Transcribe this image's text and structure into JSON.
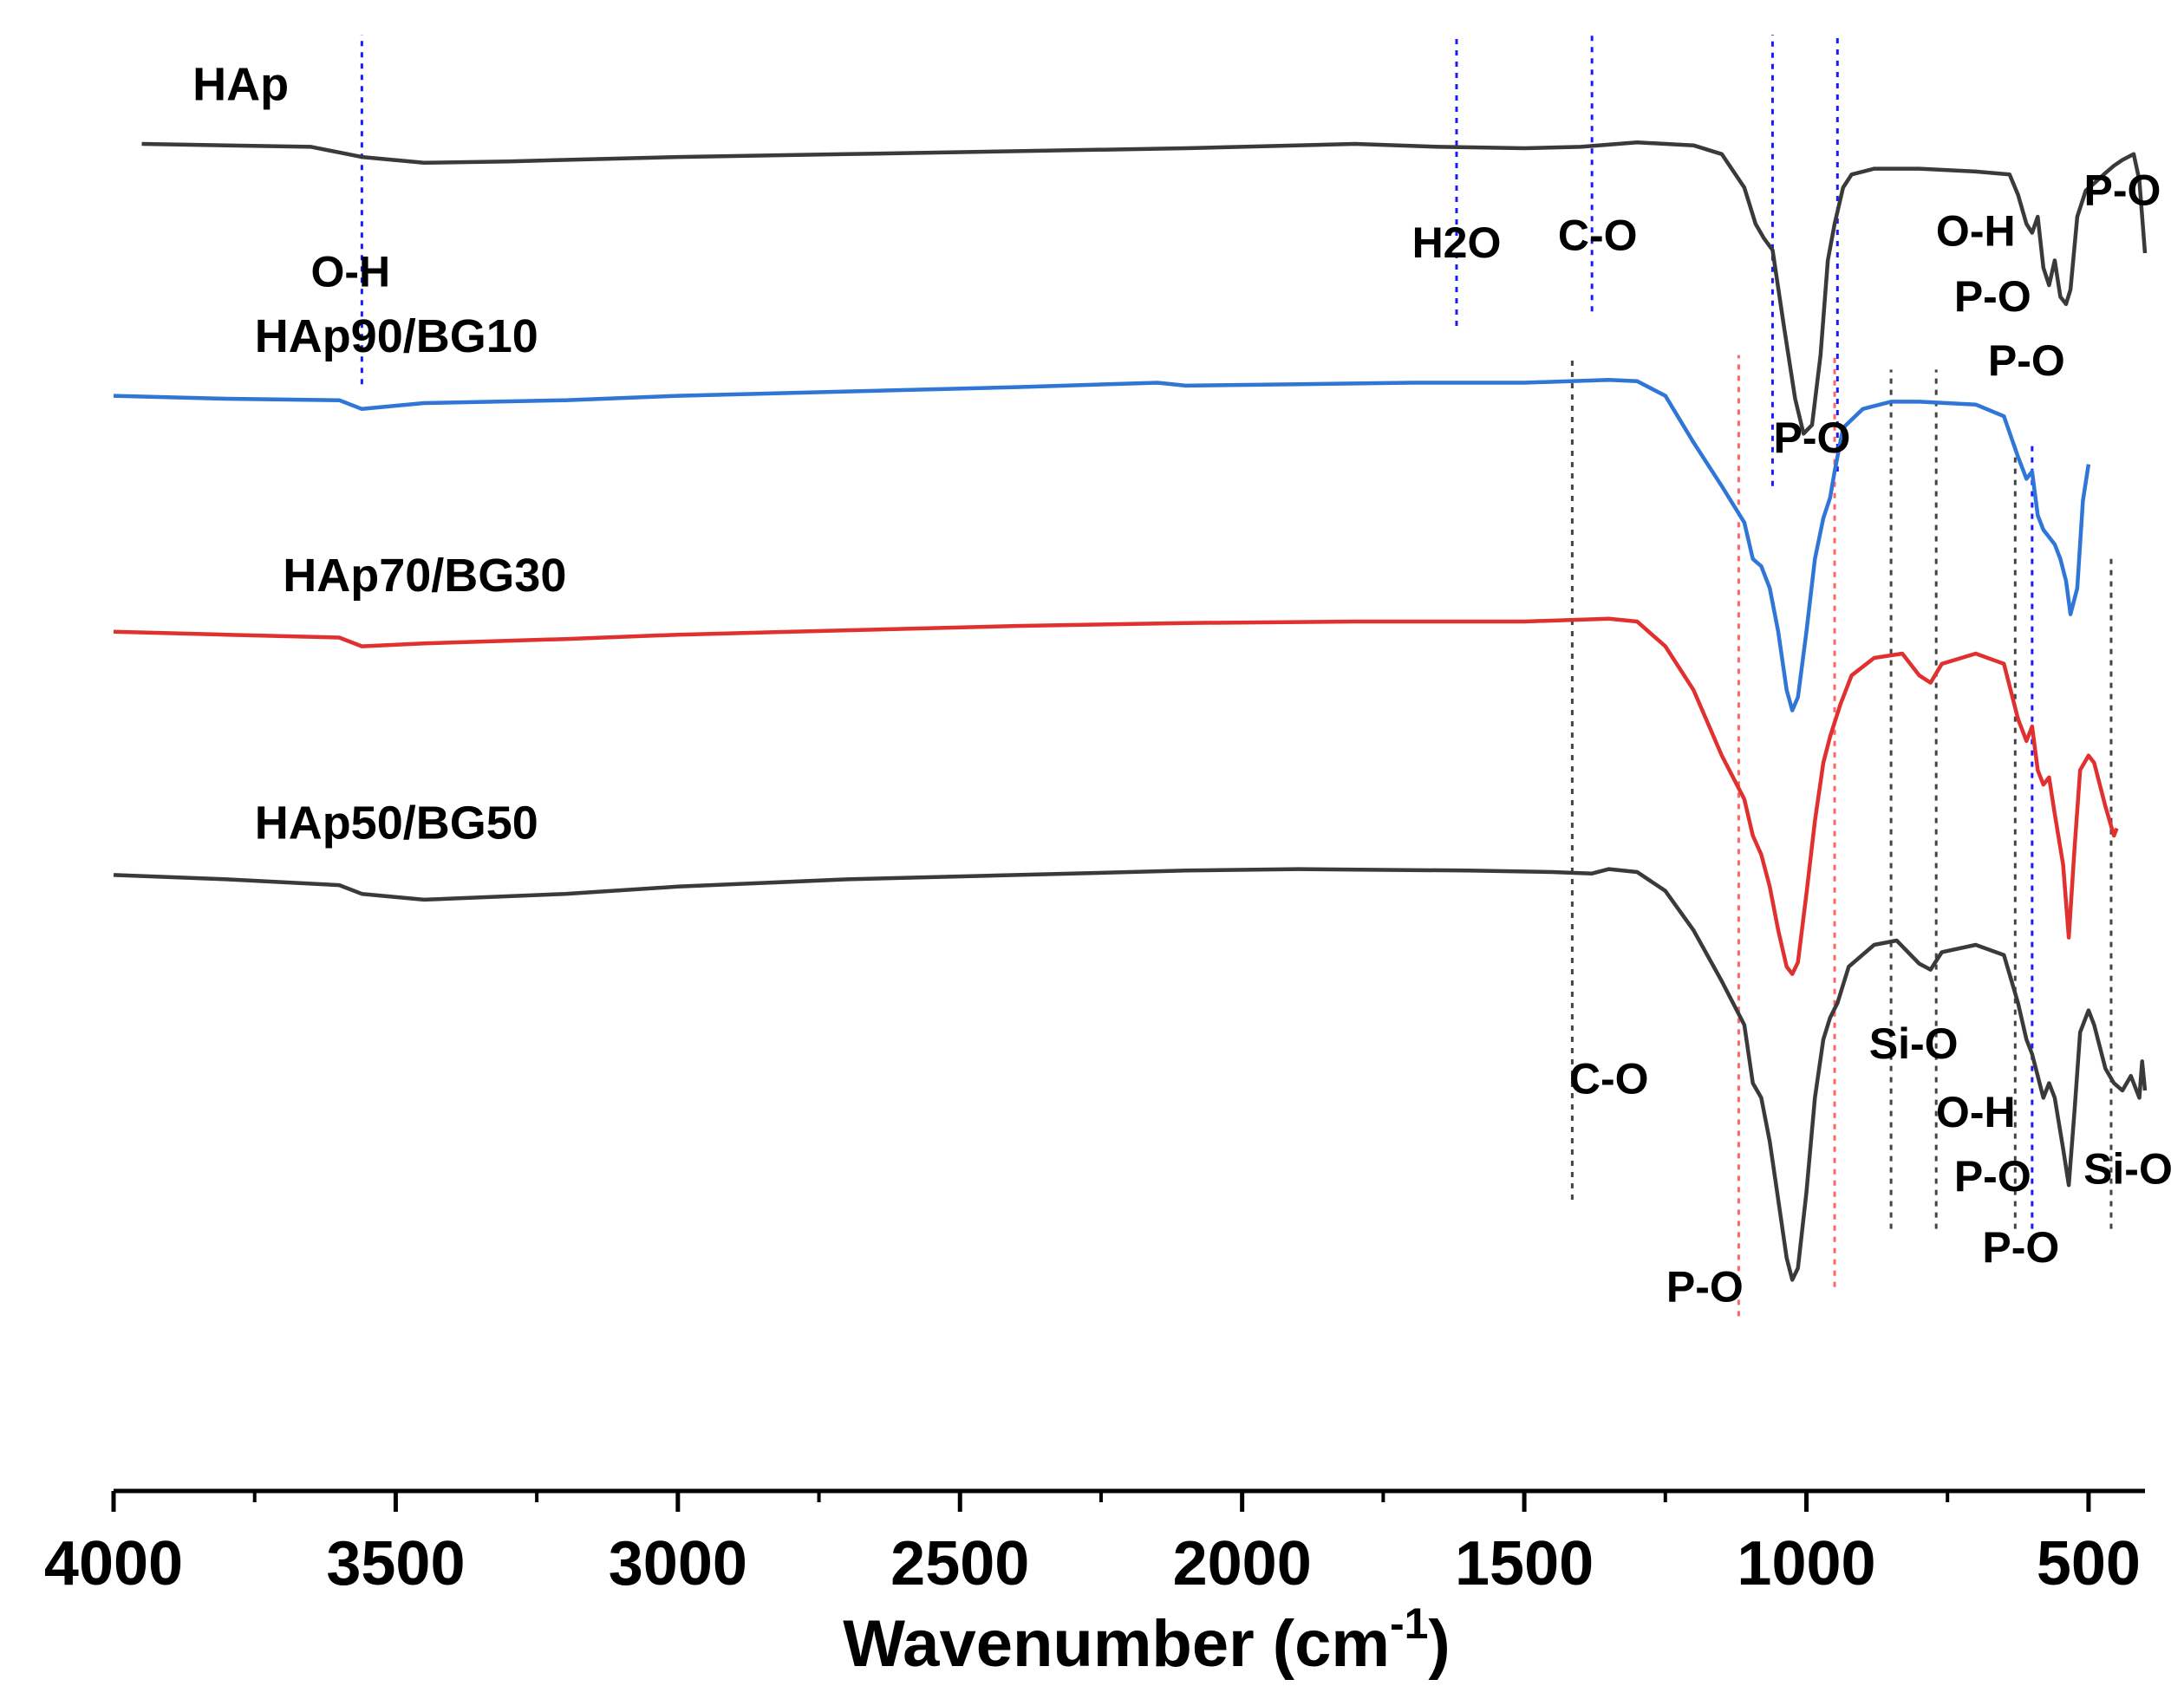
{
  "chart_data": {
    "type": "line",
    "title": "",
    "xlabel": "Wavenumber (cm",
    "xlabel_superscript": "-1",
    "xlabel_close": ")",
    "ylabel": "",
    "xlim": [
      4000,
      400
    ],
    "xticks": [
      "4000",
      "3500",
      "3000",
      "2500",
      "2000",
      "1500",
      "1000",
      "500"
    ],
    "xtick_values": [
      4000,
      3500,
      3000,
      2500,
      2000,
      1500,
      1000,
      500
    ],
    "yunits": "arbitrary transmittance (offset)",
    "ylim": [
      0,
      100
    ],
    "series": [
      {
        "name": "HAp",
        "color": "#3a3a3a",
        "points": [
          [
            3950,
            92.5
          ],
          [
            3800,
            92.4
          ],
          [
            3650,
            92.3
          ],
          [
            3560,
            91.6
          ],
          [
            3450,
            91.2
          ],
          [
            3300,
            91.3
          ],
          [
            3000,
            91.6
          ],
          [
            2700,
            91.8
          ],
          [
            2400,
            92.0
          ],
          [
            2100,
            92.2
          ],
          [
            1800,
            92.5
          ],
          [
            1650,
            92.3
          ],
          [
            1500,
            92.2
          ],
          [
            1400,
            92.3
          ],
          [
            1300,
            92.6
          ],
          [
            1200,
            92.4
          ],
          [
            1150,
            91.8
          ],
          [
            1110,
            89.5
          ],
          [
            1090,
            87.0
          ],
          [
            1075,
            86.0
          ],
          [
            1060,
            85.2
          ],
          [
            1040,
            80.0
          ],
          [
            1020,
            75.0
          ],
          [
            1005,
            72.6
          ],
          [
            990,
            73.2
          ],
          [
            975,
            78.0
          ],
          [
            962,
            84.5
          ],
          [
            950,
            87.0
          ],
          [
            935,
            89.5
          ],
          [
            920,
            90.4
          ],
          [
            880,
            90.8
          ],
          [
            800,
            90.8
          ],
          [
            700,
            90.6
          ],
          [
            640,
            90.4
          ],
          [
            625,
            89.0
          ],
          [
            610,
            87.0
          ],
          [
            600,
            86.4
          ],
          [
            590,
            87.5
          ],
          [
            580,
            84.0
          ],
          [
            570,
            82.8
          ],
          [
            560,
            84.5
          ],
          [
            550,
            82.0
          ],
          [
            540,
            81.5
          ],
          [
            532,
            82.5
          ],
          [
            520,
            87.5
          ],
          [
            505,
            89.3
          ],
          [
            490,
            89.8
          ],
          [
            470,
            90.5
          ],
          [
            455,
            91.0
          ],
          [
            440,
            91.4
          ],
          [
            420,
            91.8
          ],
          [
            410,
            90.0
          ],
          [
            400,
            85.0
          ]
        ]
      },
      {
        "name": "HAp90/BG10",
        "color": "#2f76d6",
        "points": [
          [
            4000,
            75.2
          ],
          [
            3800,
            75.0
          ],
          [
            3600,
            74.9
          ],
          [
            3560,
            74.3
          ],
          [
            3450,
            74.7
          ],
          [
            3200,
            74.9
          ],
          [
            3000,
            75.2
          ],
          [
            2700,
            75.5
          ],
          [
            2400,
            75.8
          ],
          [
            2150,
            76.1
          ],
          [
            2100,
            75.9
          ],
          [
            1900,
            76.0
          ],
          [
            1700,
            76.1
          ],
          [
            1500,
            76.1
          ],
          [
            1350,
            76.3
          ],
          [
            1300,
            76.2
          ],
          [
            1250,
            75.2
          ],
          [
            1200,
            72.0
          ],
          [
            1150,
            69.0
          ],
          [
            1110,
            66.5
          ],
          [
            1095,
            64.0
          ],
          [
            1080,
            63.5
          ],
          [
            1065,
            62.0
          ],
          [
            1050,
            59.0
          ],
          [
            1035,
            55.0
          ],
          [
            1025,
            53.6
          ],
          [
            1015,
            54.5
          ],
          [
            1000,
            59.0
          ],
          [
            985,
            64.0
          ],
          [
            970,
            66.8
          ],
          [
            958,
            68.2
          ],
          [
            950,
            70.0
          ],
          [
            935,
            73.0
          ],
          [
            900,
            74.3
          ],
          [
            850,
            74.8
          ],
          [
            800,
            74.8
          ],
          [
            700,
            74.6
          ],
          [
            650,
            73.8
          ],
          [
            625,
            71.0
          ],
          [
            610,
            69.5
          ],
          [
            600,
            70.0
          ],
          [
            590,
            67.0
          ],
          [
            580,
            66.0
          ],
          [
            570,
            65.5
          ],
          [
            560,
            65.0
          ],
          [
            550,
            64.0
          ],
          [
            540,
            62.5
          ],
          [
            532,
            60.2
          ],
          [
            520,
            62.0
          ],
          [
            510,
            68.0
          ],
          [
            500,
            70.5
          ]
        ]
      },
      {
        "name": "HAp70/BG30",
        "color": "#e03030",
        "points": [
          [
            4000,
            59.0
          ],
          [
            3800,
            58.8
          ],
          [
            3600,
            58.6
          ],
          [
            3560,
            58.0
          ],
          [
            3450,
            58.2
          ],
          [
            3200,
            58.5
          ],
          [
            3000,
            58.8
          ],
          [
            2700,
            59.1
          ],
          [
            2400,
            59.4
          ],
          [
            2100,
            59.6
          ],
          [
            1800,
            59.7
          ],
          [
            1500,
            59.7
          ],
          [
            1350,
            59.9
          ],
          [
            1300,
            59.7
          ],
          [
            1250,
            58.0
          ],
          [
            1200,
            55.0
          ],
          [
            1150,
            50.5
          ],
          [
            1110,
            47.5
          ],
          [
            1095,
            45.0
          ],
          [
            1080,
            43.7
          ],
          [
            1065,
            41.5
          ],
          [
            1050,
            38.5
          ],
          [
            1035,
            36.0
          ],
          [
            1025,
            35.5
          ],
          [
            1015,
            36.3
          ],
          [
            1000,
            41.0
          ],
          [
            985,
            46.0
          ],
          [
            970,
            50.0
          ],
          [
            958,
            51.8
          ],
          [
            940,
            54.0
          ],
          [
            920,
            56.0
          ],
          [
            880,
            57.2
          ],
          [
            830,
            57.5
          ],
          [
            800,
            56.0
          ],
          [
            780,
            55.5
          ],
          [
            760,
            56.8
          ],
          [
            700,
            57.5
          ],
          [
            650,
            56.8
          ],
          [
            625,
            53.0
          ],
          [
            610,
            51.5
          ],
          [
            600,
            52.5
          ],
          [
            590,
            49.5
          ],
          [
            580,
            48.5
          ],
          [
            570,
            49.0
          ],
          [
            560,
            46.5
          ],
          [
            545,
            43.0
          ],
          [
            535,
            38.0
          ],
          [
            525,
            44.0
          ],
          [
            515,
            49.5
          ],
          [
            500,
            50.5
          ],
          [
            490,
            50.0
          ],
          [
            470,
            47.0
          ],
          [
            455,
            45.0
          ],
          [
            450,
            45.5
          ]
        ]
      },
      {
        "name": "HAp50/BG50",
        "color": "#3a3a3a",
        "points": [
          [
            4000,
            42.3
          ],
          [
            3800,
            42.0
          ],
          [
            3600,
            41.6
          ],
          [
            3560,
            41.0
          ],
          [
            3450,
            40.6
          ],
          [
            3200,
            41.0
          ],
          [
            3000,
            41.5
          ],
          [
            2700,
            42.0
          ],
          [
            2400,
            42.3
          ],
          [
            2100,
            42.6
          ],
          [
            1900,
            42.7
          ],
          [
            1600,
            42.6
          ],
          [
            1450,
            42.5
          ],
          [
            1380,
            42.4
          ],
          [
            1350,
            42.7
          ],
          [
            1300,
            42.5
          ],
          [
            1250,
            41.2
          ],
          [
            1200,
            38.5
          ],
          [
            1150,
            35.0
          ],
          [
            1110,
            32.0
          ],
          [
            1095,
            28.0
          ],
          [
            1080,
            27.0
          ],
          [
            1065,
            24.0
          ],
          [
            1050,
            20.0
          ],
          [
            1035,
            16.0
          ],
          [
            1025,
            14.5
          ],
          [
            1015,
            15.3
          ],
          [
            1000,
            20.5
          ],
          [
            985,
            27.0
          ],
          [
            970,
            31.0
          ],
          [
            958,
            32.5
          ],
          [
            945,
            33.5
          ],
          [
            925,
            36.0
          ],
          [
            880,
            37.5
          ],
          [
            840,
            37.8
          ],
          [
            800,
            36.2
          ],
          [
            780,
            35.8
          ],
          [
            760,
            37.0
          ],
          [
            700,
            37.5
          ],
          [
            650,
            36.8
          ],
          [
            625,
            33.5
          ],
          [
            610,
            31.0
          ],
          [
            600,
            30.0
          ],
          [
            590,
            28.5
          ],
          [
            580,
            27.0
          ],
          [
            570,
            28.0
          ],
          [
            560,
            27.0
          ],
          [
            545,
            23.5
          ],
          [
            535,
            21.0
          ],
          [
            525,
            26.0
          ],
          [
            515,
            31.5
          ],
          [
            500,
            33.0
          ],
          [
            490,
            32.0
          ],
          [
            470,
            29.0
          ],
          [
            455,
            28.0
          ],
          [
            440,
            27.5
          ],
          [
            425,
            28.5
          ],
          [
            410,
            27.0
          ],
          [
            405,
            29.5
          ],
          [
            400,
            27.5
          ]
        ]
      }
    ],
    "guide_lines": [
      {
        "x": 3560,
        "color": "#1a1aff",
        "ymin": 76,
        "ymax": 100
      },
      {
        "x": 1620,
        "color": "#1a1aff",
        "ymin": 80,
        "ymax": 100
      },
      {
        "x": 1380,
        "color": "#1a1aff",
        "ymin": 81,
        "ymax": 100
      },
      {
        "x": 1060,
        "color": "#1a1aff",
        "ymin": 69,
        "ymax": 100
      },
      {
        "x": 945,
        "color": "#1a1aff",
        "ymin": 70,
        "ymax": 100
      },
      {
        "x": 1415,
        "color": "#444444",
        "ymin": 20,
        "ymax": 78
      },
      {
        "x": 1120,
        "color": "#ff6666",
        "ymin": 12,
        "ymax": 78
      },
      {
        "x": 950,
        "color": "#ff6666",
        "ymin": 14,
        "ymax": 78
      },
      {
        "x": 850,
        "color": "#444444",
        "ymin": 18,
        "ymax": 77
      },
      {
        "x": 770,
        "color": "#444444",
        "ymin": 18,
        "ymax": 77
      },
      {
        "x": 630,
        "color": "#444444",
        "ymin": 18,
        "ymax": 72
      },
      {
        "x": 600,
        "color": "#1a1aff",
        "ymin": 18,
        "ymax": 72
      },
      {
        "x": 460,
        "color": "#444444",
        "ymin": 18,
        "ymax": 64
      }
    ],
    "series_labels": [
      {
        "text": "HAp",
        "x": 3860,
        "y": 95.5
      },
      {
        "text": "HAp90/BG10",
        "x": 3750,
        "y": 78.2
      },
      {
        "text": "HAp70/BG30",
        "x": 3700,
        "y": 61.8
      },
      {
        "text": "HAp50/BG50",
        "x": 3750,
        "y": 44.8
      }
    ],
    "annotations": [
      {
        "text": "O-H",
        "x": 3580,
        "y": 82.7
      },
      {
        "text": "H2O",
        "x": 1620,
        "y": 84.7
      },
      {
        "text": "C-O",
        "x": 1370,
        "y": 85.2
      },
      {
        "text": "P-O",
        "x": 990,
        "y": 71.3
      },
      {
        "text": "O-H",
        "x": 700,
        "y": 85.5
      },
      {
        "text": "P-O",
        "x": 670,
        "y": 81.0
      },
      {
        "text": "P-O",
        "x": 610,
        "y": 76.6
      },
      {
        "text": "P-O",
        "x": 440,
        "y": 88.3
      },
      {
        "text": "C-O",
        "x": 1350,
        "y": 27.3
      },
      {
        "text": "Si-O",
        "x": 810,
        "y": 29.7
      },
      {
        "text": "O-H",
        "x": 700,
        "y": 25.0
      },
      {
        "text": "P-O",
        "x": 670,
        "y": 20.6
      },
      {
        "text": "Si-O",
        "x": 430,
        "y": 21.1
      },
      {
        "text": "P-O",
        "x": 1180,
        "y": 13.0
      },
      {
        "text": "P-O",
        "x": 620,
        "y": 15.7
      }
    ]
  }
}
